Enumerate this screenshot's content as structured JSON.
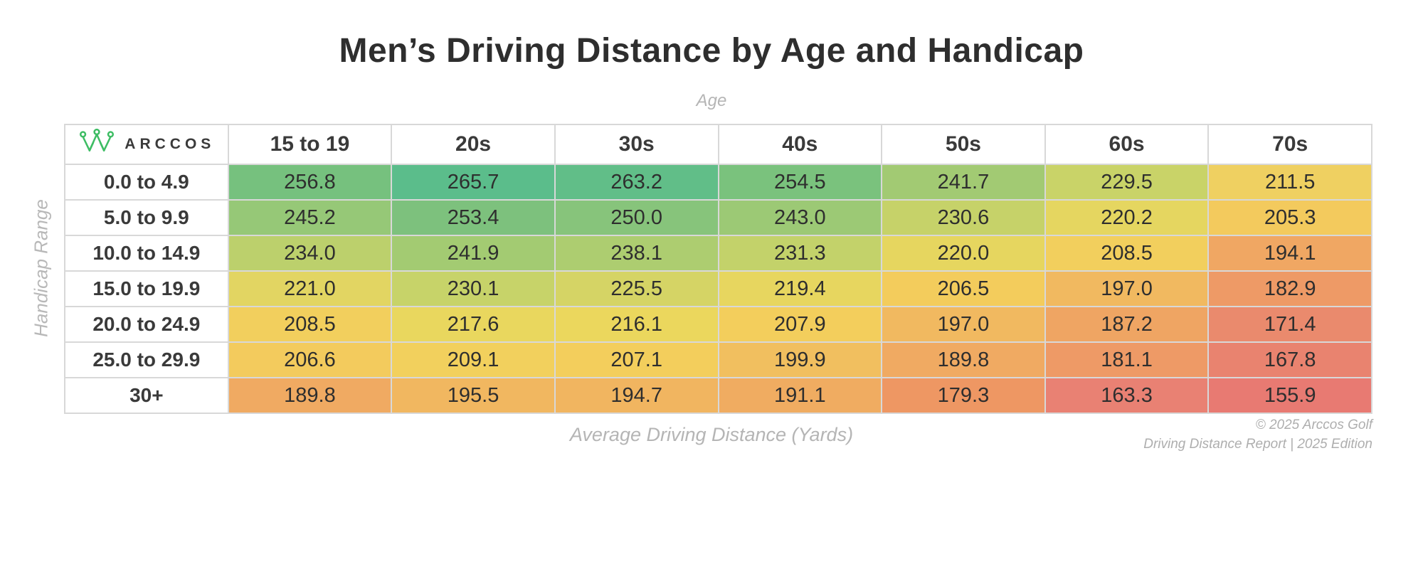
{
  "brand": {
    "logo_text": "ARCCOS",
    "logo_color": "#3ebd64"
  },
  "axis_labels": {
    "top": "Age",
    "left": "Handicap Range",
    "bottom": "Average Driving Distance (Yards)"
  },
  "footer": {
    "copyright_line1": "© 2025 Arccos Golf",
    "copyright_line2": "Driving Distance Report | 2025 Edition"
  },
  "chart_data": {
    "type": "heatmap",
    "title": "Men’s Driving Distance by Age and Handicap",
    "xlabel": "Age",
    "ylabel": "Handicap Range",
    "value_caption": "Average Driving Distance (Yards)",
    "columns": [
      "15 to 19",
      "20s",
      "30s",
      "40s",
      "50s",
      "60s",
      "70s"
    ],
    "rows": [
      "0.0 to 4.9",
      "5.0 to 9.9",
      "10.0 to 14.9",
      "15.0 to 19.9",
      "20.0 to 24.9",
      "25.0 to 29.9",
      "30+"
    ],
    "values": [
      [
        256.8,
        265.7,
        263.2,
        254.5,
        241.7,
        229.5,
        211.5
      ],
      [
        245.2,
        253.4,
        250.0,
        243.0,
        230.6,
        220.2,
        205.3
      ],
      [
        234.0,
        241.9,
        238.1,
        231.3,
        220.0,
        208.5,
        194.1
      ],
      [
        221.0,
        230.1,
        225.5,
        219.4,
        206.5,
        197.0,
        182.9
      ],
      [
        208.5,
        217.6,
        216.1,
        207.9,
        197.0,
        187.2,
        171.4
      ],
      [
        206.6,
        209.1,
        207.1,
        199.9,
        189.8,
        181.1,
        167.8
      ],
      [
        189.8,
        195.5,
        194.7,
        191.1,
        179.3,
        163.3,
        155.9
      ]
    ],
    "cell_colors": [
      [
        "#76c17e",
        "#5bbd8b",
        "#61be88",
        "#7ac27d",
        "#a2ca73",
        "#c9d368",
        "#efd061"
      ],
      [
        "#96c877",
        "#7dc17d",
        "#87c47b",
        "#9cc975",
        "#c6d269",
        "#e5d660",
        "#f3ca5d"
      ],
      [
        "#bcd06c",
        "#a3cb72",
        "#adcd70",
        "#c3d26a",
        "#e6d65f",
        "#f2cf5d",
        "#f0a763"
      ],
      [
        "#e2d562",
        "#c7d369",
        "#d5d465",
        "#e7d65f",
        "#f3cc5c",
        "#f1b960",
        "#ee9a66"
      ],
      [
        "#f2cf5d",
        "#e9d75e",
        "#ebd75d",
        "#f3ce5c",
        "#f1b960",
        "#efa563",
        "#ea8a6d"
      ],
      [
        "#f3cb5d",
        "#f2d05d",
        "#f3ce5c",
        "#f1bf5f",
        "#f0aa62",
        "#ee9a66",
        "#e9836f"
      ],
      [
        "#f0aa62",
        "#f1b760",
        "#f1b560",
        "#f0ac61",
        "#ee9763",
        "#e98173",
        "#e87a72"
      ]
    ],
    "value_range": [
      155.9,
      265.7
    ],
    "colorscale": [
      "#e87a72",
      "#f0aa62",
      "#f3ce5c",
      "#c6d269",
      "#76c17e",
      "#5bbd8b"
    ]
  }
}
